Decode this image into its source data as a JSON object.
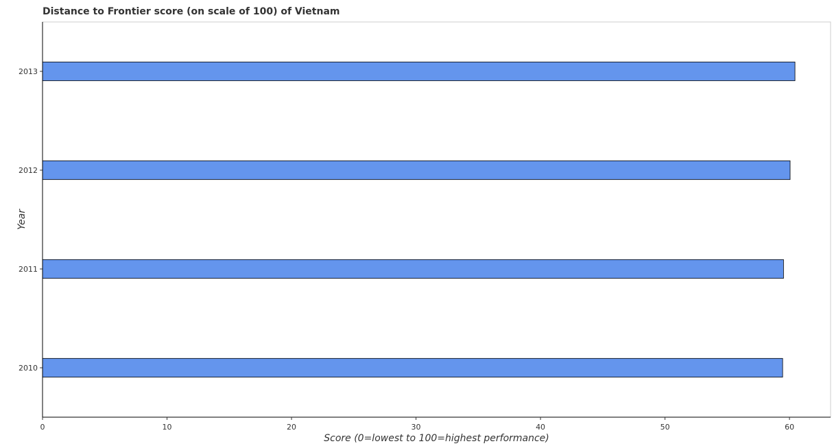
{
  "chart_data": {
    "type": "bar",
    "orientation": "horizontal",
    "title": "Distance to Frontier score (on scale of 100) of Vietnam",
    "xlabel": "Score (0=lowest to 100=highest performance)",
    "ylabel": "Year",
    "categories": [
      "2010",
      "2011",
      "2012",
      "2013"
    ],
    "values": [
      59.45,
      59.52,
      60.05,
      60.44
    ],
    "xlim": [
      0,
      63.3
    ],
    "xticks": [
      0,
      10,
      20,
      30,
      40,
      50,
      60
    ],
    "xtick_labels": [
      "0",
      "10",
      "20",
      "30",
      "40",
      "50",
      "60"
    ],
    "grid": false,
    "bar_color": "#6495ED",
    "bar_edge_color": "#000000"
  }
}
